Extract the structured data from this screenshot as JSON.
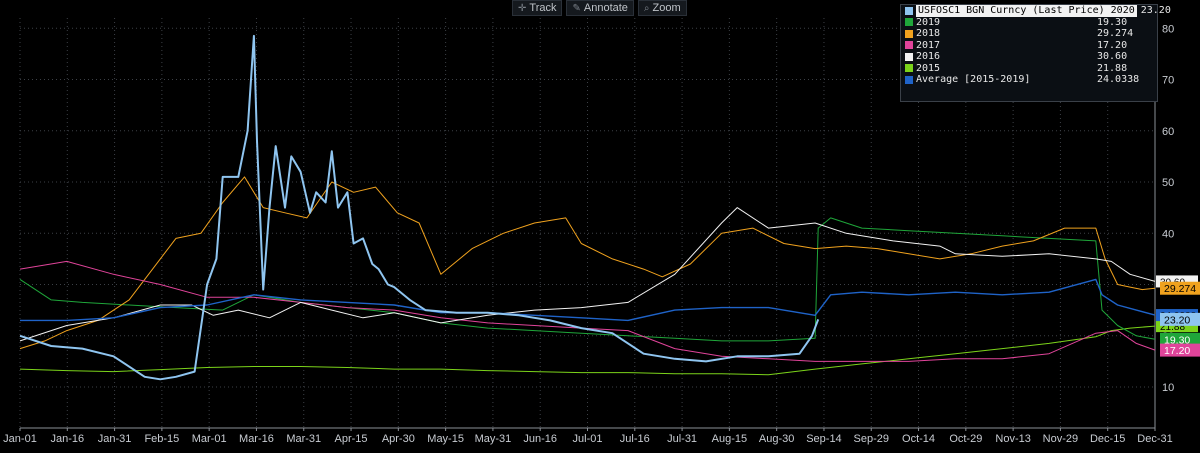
{
  "toolbar": {
    "items": [
      {
        "label": "Track",
        "icon": "crosshair-icon",
        "glyph": "✛"
      },
      {
        "label": "Annotate",
        "icon": "pencil-icon",
        "glyph": "✎"
      },
      {
        "label": "Zoom",
        "icon": "magnifier-icon",
        "glyph": "⌕"
      }
    ]
  },
  "legend": {
    "rows": [
      {
        "name": "USFOSC1 BGN Curncy (Last Price) 2020",
        "value": "23.20",
        "color": "#8fc5f0"
      },
      {
        "name": "2019",
        "value": "19.30",
        "color": "#1fa63a"
      },
      {
        "name": "2018",
        "value": "29.274",
        "color": "#f0a21e"
      },
      {
        "name": "2017",
        "value": "17.20",
        "color": "#e0449a"
      },
      {
        "name": "2016",
        "value": "30.60",
        "color": "#f2f2f2"
      },
      {
        "name": "2015",
        "value": "21.88",
        "color": "#7bd31a"
      },
      {
        "name": "Average [2015-2019]",
        "value": "24.0338",
        "color": "#1f63c8"
      }
    ]
  },
  "chart_data": {
    "type": "line",
    "x_tick_labels": [
      "Jan-01",
      "Jan-16",
      "Jan-31",
      "Feb-15",
      "Mar-01",
      "Mar-16",
      "Mar-31",
      "Apr-15",
      "Apr-30",
      "May-15",
      "May-31",
      "Jun-16",
      "Jul-01",
      "Jul-16",
      "Jul-31",
      "Aug-15",
      "Aug-30",
      "Sep-14",
      "Sep-29",
      "Oct-14",
      "Oct-29",
      "Nov-13",
      "Nov-29",
      "Dec-15",
      "Dec-31"
    ],
    "ylim": [
      2,
      82
    ],
    "y_ticks": [
      10,
      20,
      30,
      40,
      50,
      60,
      70,
      80
    ],
    "grid": true,
    "series": [
      {
        "name": "2015",
        "color": "#7bd31a",
        "width": 1,
        "x": [
          0,
          15,
          30,
          45,
          60,
          75,
          90,
          105,
          120,
          135,
          150,
          165,
          180,
          195,
          210,
          225,
          240,
          255,
          270,
          285,
          300,
          315,
          330,
          345,
          350,
          356,
          364
        ],
        "y": [
          13.5,
          13.2,
          13.0,
          13.4,
          13.8,
          14.0,
          14.0,
          13.8,
          13.5,
          13.5,
          13.2,
          13.0,
          12.8,
          12.8,
          12.6,
          12.6,
          12.4,
          13.5,
          14.5,
          15.5,
          16.5,
          17.5,
          18.5,
          19.8,
          21.0,
          21.5,
          21.88
        ]
      },
      {
        "name": "2019",
        "color": "#1fa63a",
        "width": 1,
        "x": [
          0,
          10,
          20,
          35,
          50,
          65,
          75,
          90,
          105,
          120,
          135,
          150,
          165,
          180,
          195,
          210,
          225,
          240,
          255,
          256,
          260,
          270,
          285,
          300,
          315,
          330,
          345,
          347,
          352,
          358,
          364
        ],
        "y": [
          31.0,
          27.0,
          26.5,
          26.0,
          25.5,
          25.0,
          28.0,
          26.5,
          25.5,
          24.5,
          22.5,
          21.5,
          21.0,
          20.5,
          20.0,
          19.5,
          19.0,
          19.0,
          19.5,
          41.0,
          43.0,
          41.0,
          40.5,
          40.0,
          39.5,
          39.0,
          38.5,
          25.0,
          22.0,
          20.0,
          19.3
        ]
      },
      {
        "name": "2018",
        "color": "#f0a21e",
        "width": 1,
        "x": [
          0,
          8,
          15,
          25,
          35,
          45,
          50,
          58,
          65,
          72,
          78,
          85,
          92,
          100,
          107,
          114,
          121,
          128,
          135,
          145,
          155,
          165,
          175,
          180,
          190,
          200,
          206,
          215,
          225,
          235,
          245,
          255,
          265,
          275,
          285,
          295,
          305,
          315,
          325,
          335,
          345,
          348,
          352,
          356,
          360,
          364
        ],
        "y": [
          17.5,
          19.0,
          21.0,
          23.0,
          27.0,
          35.0,
          39.0,
          40.0,
          46.0,
          51.0,
          45.0,
          44.0,
          43.0,
          50.0,
          48.0,
          49.0,
          44.0,
          42.0,
          32.0,
          37.0,
          40.0,
          42.0,
          43.0,
          38.0,
          35.0,
          33.0,
          31.5,
          34.0,
          40.0,
          41.0,
          38.0,
          37.0,
          37.5,
          37.0,
          36.0,
          35.0,
          36.0,
          37.5,
          38.5,
          41.0,
          41.0,
          35.0,
          30.0,
          29.5,
          29.0,
          29.274
        ]
      },
      {
        "name": "2017",
        "color": "#e0449a",
        "width": 1,
        "x": [
          0,
          15,
          30,
          45,
          60,
          75,
          90,
          105,
          120,
          135,
          150,
          165,
          180,
          195,
          210,
          225,
          240,
          255,
          270,
          285,
          300,
          315,
          330,
          345,
          352,
          358,
          364
        ],
        "y": [
          33.0,
          34.5,
          32.0,
          30.0,
          27.5,
          27.5,
          26.5,
          25.5,
          25.0,
          23.5,
          22.5,
          22.0,
          21.5,
          21.0,
          17.5,
          16.0,
          15.5,
          15.0,
          15.0,
          15.0,
          15.5,
          15.5,
          16.5,
          20.5,
          21.0,
          18.5,
          17.2
        ]
      },
      {
        "name": "2016",
        "color": "#f2f2f2",
        "width": 1,
        "x": [
          0,
          15,
          30,
          45,
          55,
          62,
          70,
          80,
          90,
          100,
          110,
          120,
          135,
          150,
          165,
          180,
          195,
          210,
          225,
          230,
          240,
          255,
          265,
          280,
          295,
          300,
          315,
          330,
          345,
          350,
          356,
          364
        ],
        "y": [
          19.0,
          22.0,
          23.5,
          26.0,
          26.0,
          24.0,
          25.0,
          23.5,
          26.5,
          25.0,
          23.5,
          24.5,
          22.5,
          24.0,
          25.0,
          25.5,
          26.5,
          32.0,
          42.0,
          45.0,
          41.0,
          42.0,
          40.0,
          38.5,
          37.5,
          36.0,
          35.5,
          36.0,
          35.0,
          34.5,
          32.0,
          30.6
        ]
      },
      {
        "name": "Average [2015-2019]",
        "color": "#1f63c8",
        "width": 1.4,
        "x": [
          0,
          15,
          30,
          45,
          60,
          75,
          90,
          105,
          120,
          135,
          150,
          165,
          180,
          195,
          210,
          225,
          240,
          255,
          260,
          270,
          285,
          300,
          315,
          330,
          345,
          347,
          352,
          358,
          364
        ],
        "y": [
          23.0,
          23.0,
          23.5,
          25.5,
          26.0,
          28.0,
          27.0,
          26.5,
          26.0,
          24.5,
          24.5,
          24.0,
          23.5,
          23.0,
          25.0,
          25.5,
          25.5,
          24.0,
          28.0,
          28.5,
          28.0,
          28.5,
          28.0,
          28.5,
          31.0,
          28.0,
          26.0,
          25.0,
          24.0338
        ]
      },
      {
        "name": "USFOSC1 BGN Curncy (Last Price) 2020",
        "color": "#8fc5f0",
        "width": 2,
        "x": [
          0,
          10,
          20,
          30,
          40,
          45,
          50,
          56,
          60,
          63,
          65,
          70,
          73,
          75,
          76,
          78,
          80,
          82,
          85,
          87,
          90,
          93,
          95,
          98,
          100,
          102,
          105,
          107,
          110,
          113,
          115,
          118,
          120,
          125,
          130,
          140,
          150,
          160,
          170,
          180,
          190,
          200,
          210,
          220,
          230,
          240,
          250,
          254,
          256
        ],
        "y": [
          20.0,
          18.0,
          17.5,
          16.0,
          12.0,
          11.5,
          12.0,
          13.0,
          30.0,
          35.0,
          51.0,
          51.0,
          60.0,
          78.5,
          58.0,
          29.0,
          45.0,
          57.0,
          45.0,
          55.0,
          52.0,
          44.0,
          48.0,
          46.0,
          56.0,
          45.0,
          48.0,
          38.0,
          39.0,
          34.0,
          33.0,
          30.0,
          29.5,
          27.0,
          25.0,
          24.5,
          24.5,
          24.0,
          23.0,
          21.5,
          20.5,
          16.5,
          15.5,
          15.0,
          16.0,
          16.0,
          16.5,
          20.0,
          23.2
        ]
      }
    ],
    "value_labels": [
      {
        "text": "29.274",
        "value": 29.274,
        "bg": "#f0a21e",
        "fg": "#000000"
      },
      {
        "text": "23.20",
        "value": 23.2,
        "bg": "#8fc5f0",
        "fg": "#000000"
      },
      {
        "text": "19.30",
        "value": 19.3,
        "bg": "#1fa63a",
        "fg": "#ffffff"
      },
      {
        "text": "17.20",
        "value": 17.2,
        "bg": "#e0449a",
        "fg": "#ffffff"
      }
    ],
    "behind_labels": [
      {
        "text": "30.60",
        "value": 30.6,
        "bg": "#f2f2f2"
      },
      {
        "text": "21.88",
        "value": 21.88,
        "bg": "#7bd31a"
      },
      {
        "text": "24.0338",
        "value": 24.0338,
        "bg": "#1f63c8"
      }
    ],
    "x_range": [
      0,
      364
    ]
  }
}
